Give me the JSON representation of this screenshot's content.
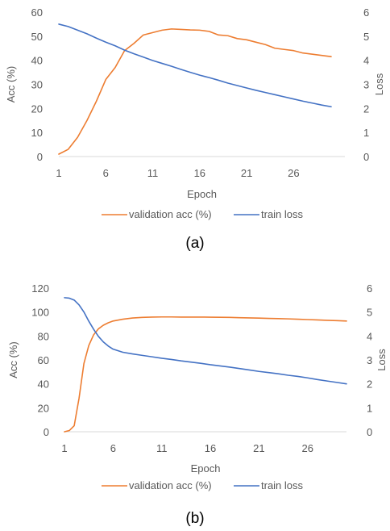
{
  "chart_data": [
    {
      "type": "line",
      "caption": "(a)",
      "xlabel": "Epoch",
      "ylabel_left": "Acc (%)",
      "ylabel_right": "Loss",
      "xlim": [
        1,
        30
      ],
      "x_ticks": [
        1,
        6,
        11,
        16,
        21,
        26
      ],
      "ylim_left": [
        0,
        60
      ],
      "y_ticks_left": [
        0,
        10,
        20,
        30,
        40,
        50,
        60
      ],
      "ylim_right": [
        0,
        6
      ],
      "y_ticks_right": [
        0,
        1,
        2,
        3,
        4,
        5,
        6
      ],
      "grid": false,
      "legend_position": "bottom",
      "series": [
        {
          "name": "validation acc (%)",
          "axis": "left",
          "color": "#ED7D31",
          "x": [
            1,
            2,
            3,
            4,
            5,
            6,
            7,
            8,
            9,
            10,
            11,
            12,
            13,
            14,
            15,
            16,
            17,
            18,
            19,
            20,
            21,
            22,
            23,
            24,
            25,
            26,
            27,
            28,
            29,
            30
          ],
          "values": [
            1,
            3,
            8,
            15,
            23,
            32,
            37,
            44,
            47,
            50.5,
            51.5,
            52.5,
            53,
            52.8,
            52.6,
            52.5,
            52,
            50.5,
            50.2,
            49,
            48.5,
            47.5,
            46.5,
            45,
            44.5,
            44,
            43,
            42.5,
            42,
            41.5
          ]
        },
        {
          "name": "train loss",
          "axis": "right",
          "color": "#4472C4",
          "x": [
            1,
            2,
            3,
            4,
            5,
            6,
            7,
            8,
            9,
            10,
            11,
            12,
            13,
            14,
            15,
            16,
            17,
            18,
            19,
            20,
            21,
            22,
            23,
            24,
            25,
            26,
            27,
            28,
            29,
            30
          ],
          "values": [
            5.5,
            5.4,
            5.25,
            5.1,
            4.92,
            4.75,
            4.6,
            4.42,
            4.27,
            4.13,
            3.99,
            3.87,
            3.75,
            3.62,
            3.5,
            3.38,
            3.28,
            3.17,
            3.05,
            2.95,
            2.85,
            2.75,
            2.66,
            2.57,
            2.48,
            2.39,
            2.3,
            2.22,
            2.14,
            2.07
          ]
        }
      ]
    },
    {
      "type": "line",
      "caption": "(b)",
      "xlabel": "Epoch",
      "ylabel_left": "Acc (%)",
      "ylabel_right": "Loss",
      "xlim": [
        1,
        30
      ],
      "x_ticks": [
        1,
        6,
        11,
        16,
        21,
        26
      ],
      "ylim_left": [
        0,
        120
      ],
      "y_ticks_left": [
        0,
        20,
        40,
        60,
        80,
        100,
        120
      ],
      "ylim_right": [
        0,
        6
      ],
      "y_ticks_right": [
        0,
        1,
        2,
        3,
        4,
        5,
        6
      ],
      "grid": false,
      "legend_position": "bottom",
      "series": [
        {
          "name": "validation acc (%)",
          "axis": "left",
          "color": "#ED7D31",
          "x": [
            1,
            1.5,
            2,
            2.5,
            3,
            3.5,
            4,
            4.5,
            5,
            5.5,
            6,
            7,
            8,
            9,
            10,
            11,
            12,
            13,
            14,
            15,
            16,
            17,
            18,
            19,
            20,
            21,
            22,
            23,
            24,
            25,
            26,
            27,
            28,
            29,
            30
          ],
          "values": [
            0,
            1,
            5,
            28,
            57,
            72,
            81,
            86,
            89,
            91,
            92.5,
            94,
            95,
            95.5,
            95.8,
            95.9,
            95.9,
            95.8,
            95.8,
            95.8,
            95.7,
            95.6,
            95.5,
            95.3,
            95.1,
            94.9,
            94.7,
            94.5,
            94.3,
            94,
            93.7,
            93.4,
            93.1,
            92.8,
            92.5
          ]
        },
        {
          "name": "train loss",
          "axis": "right",
          "color": "#4472C4",
          "x": [
            1,
            1.5,
            2,
            2.5,
            3,
            3.5,
            4,
            4.5,
            5,
            5.5,
            6,
            7,
            8,
            9,
            10,
            11,
            12,
            13,
            14,
            15,
            16,
            17,
            18,
            19,
            20,
            21,
            22,
            23,
            24,
            25,
            26,
            27,
            28,
            29,
            30
          ],
          "values": [
            5.6,
            5.58,
            5.5,
            5.3,
            5.0,
            4.62,
            4.28,
            3.98,
            3.75,
            3.58,
            3.45,
            3.32,
            3.25,
            3.19,
            3.13,
            3.07,
            3.02,
            2.96,
            2.91,
            2.86,
            2.8,
            2.75,
            2.7,
            2.64,
            2.58,
            2.52,
            2.47,
            2.42,
            2.36,
            2.31,
            2.25,
            2.18,
            2.12,
            2.06,
            2.0
          ]
        }
      ]
    }
  ]
}
